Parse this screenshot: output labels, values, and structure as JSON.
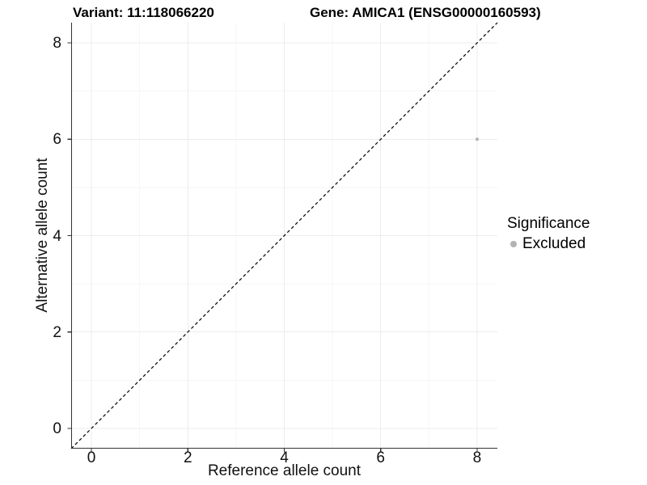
{
  "chart_data": {
    "type": "scatter",
    "title_left": "Variant: 11:118066220",
    "title_right": "Gene: AMICA1 (ENSG00000160593)",
    "xlabel": "Reference allele count",
    "ylabel": "Alternative allele count",
    "xlim": [
      -0.42,
      8.42
    ],
    "ylim": [
      -0.42,
      8.42
    ],
    "x_ticks": [
      0,
      2,
      4,
      6,
      8
    ],
    "y_ticks": [
      0,
      2,
      4,
      6,
      8
    ],
    "x_minor_ticks": [
      1,
      3,
      5,
      7
    ],
    "y_minor_ticks": [
      1,
      3,
      5,
      7
    ],
    "grid": {
      "show": true,
      "major_color": "#ececec",
      "minor_color": "#f6f6f6"
    },
    "axis_line_color": "#333333",
    "reference_line": {
      "kind": "identity y=x",
      "style": "dashed",
      "color": "#000000"
    },
    "series": [
      {
        "name": "Excluded",
        "color": "#b3b3b3",
        "marker_size": 2,
        "points": [
          {
            "x": 8,
            "y": 6
          }
        ]
      }
    ],
    "legend": {
      "title": "Significance",
      "position": "right",
      "entries": [
        {
          "label": "Excluded",
          "color": "#b3b3b3"
        }
      ]
    }
  }
}
